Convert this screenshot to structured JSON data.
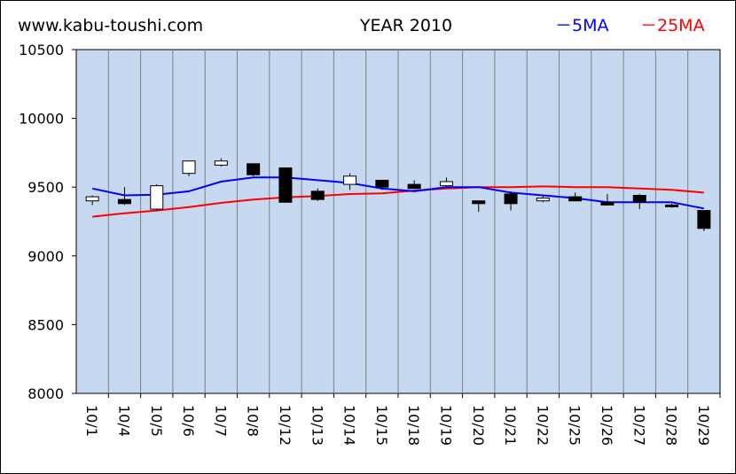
{
  "header": {
    "site": "www.kabu-toushi.com",
    "title": "YEAR 2010",
    "legend_5ma": "－5MA",
    "legend_25ma": "－25MA"
  },
  "colors": {
    "plot_bg": "#c6d9f1",
    "ma5": "#0000ff",
    "ma25": "#ff0000",
    "up_candle": "#ffffff",
    "down_candle": "#000000"
  },
  "chart_data": {
    "type": "candlestick",
    "title": "YEAR 2010",
    "ylim": [
      8000,
      10500
    ],
    "yticks": [
      8000,
      8500,
      9000,
      9500,
      10000,
      10500
    ],
    "grid": "vertical",
    "categories": [
      "10/1",
      "10/4",
      "10/5",
      "10/6",
      "10/7",
      "10/8",
      "10/12",
      "10/13",
      "10/14",
      "10/15",
      "10/18",
      "10/19",
      "10/20",
      "10/21",
      "10/22",
      "10/25",
      "10/26",
      "10/27",
      "10/28",
      "10/29"
    ],
    "ohlc": [
      {
        "open": 9400,
        "high": 9440,
        "low": 9370,
        "close": 9430
      },
      {
        "open": 9410,
        "high": 9500,
        "low": 9370,
        "close": 9380
      },
      {
        "open": 9340,
        "high": 9520,
        "low": 9330,
        "close": 9510
      },
      {
        "open": 9600,
        "high": 9690,
        "low": 9580,
        "close": 9690
      },
      {
        "open": 9660,
        "high": 9710,
        "low": 9650,
        "close": 9690
      },
      {
        "open": 9670,
        "high": 9670,
        "low": 9580,
        "close": 9590
      },
      {
        "open": 9640,
        "high": 9640,
        "low": 9390,
        "close": 9390
      },
      {
        "open": 9470,
        "high": 9490,
        "low": 9400,
        "close": 9410
      },
      {
        "open": 9520,
        "high": 9600,
        "low": 9480,
        "close": 9580
      },
      {
        "open": 9550,
        "high": 9550,
        "low": 9480,
        "close": 9500
      },
      {
        "open": 9520,
        "high": 9550,
        "low": 9490,
        "close": 9490
      },
      {
        "open": 9510,
        "high": 9570,
        "low": 9500,
        "close": 9540
      },
      {
        "open": 9400,
        "high": 9400,
        "low": 9320,
        "close": 9380
      },
      {
        "open": 9450,
        "high": 9470,
        "low": 9330,
        "close": 9380
      },
      {
        "open": 9400,
        "high": 9440,
        "low": 9390,
        "close": 9420
      },
      {
        "open": 9430,
        "high": 9460,
        "low": 9400,
        "close": 9400
      },
      {
        "open": 9390,
        "high": 9450,
        "low": 9370,
        "close": 9370
      },
      {
        "open": 9440,
        "high": 9450,
        "low": 9340,
        "close": 9390
      },
      {
        "open": 9370,
        "high": 9380,
        "low": 9350,
        "close": 9360
      },
      {
        "open": 9330,
        "high": 9330,
        "low": 9180,
        "close": 9200
      }
    ],
    "series": [
      {
        "name": "5MA",
        "values": [
          9490,
          9440,
          9445,
          9470,
          9540,
          9570,
          9570,
          9550,
          9530,
          9490,
          9470,
          9500,
          9500,
          9460,
          9440,
          9420,
          9390,
          9390,
          9390,
          9345
        ]
      },
      {
        "name": "25MA",
        "values": [
          9285,
          9310,
          9330,
          9355,
          9385,
          9410,
          9425,
          9435,
          9450,
          9455,
          9475,
          9490,
          9500,
          9500,
          9505,
          9500,
          9500,
          9490,
          9480,
          9460
        ]
      }
    ]
  }
}
